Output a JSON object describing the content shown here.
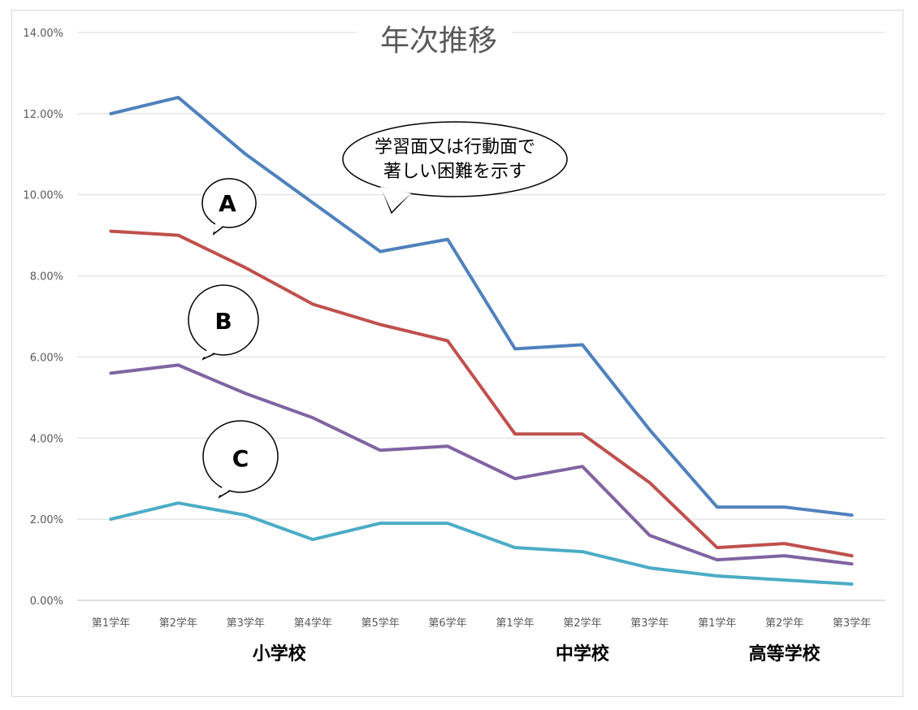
{
  "chart_data": {
    "type": "line",
    "title": "年次推移",
    "categories": [
      "第1学年",
      "第2学年",
      "第3学年",
      "第4学年",
      "第5学年",
      "第6学年",
      "第1学年",
      "第2学年",
      "第3学年",
      "第1学年",
      "第2学年",
      "第3学年"
    ],
    "groups": [
      {
        "label": "小学校",
        "from": 0,
        "to": 5
      },
      {
        "label": "中学校",
        "from": 6,
        "to": 8
      },
      {
        "label": "高等学校",
        "from": 9,
        "to": 11
      }
    ],
    "y_ticks": [
      "0.00%",
      "2.00%",
      "4.00%",
      "6.00%",
      "8.00%",
      "10.00%",
      "12.00%",
      "14.00%"
    ],
    "ylim": [
      0,
      14
    ],
    "y_unit": "%",
    "grid": true,
    "series": [
      {
        "color": "#4F81BD",
        "values": [
          12.0,
          12.4,
          11.0,
          9.8,
          8.6,
          8.9,
          6.2,
          6.3,
          4.2,
          2.3,
          2.3,
          2.1
        ]
      },
      {
        "color": "#C0504D",
        "values": [
          9.1,
          9.0,
          8.2,
          7.3,
          6.8,
          6.4,
          4.1,
          4.1,
          2.9,
          1.3,
          1.4,
          1.1
        ]
      },
      {
        "color": "#8064A2",
        "values": [
          5.6,
          5.8,
          5.1,
          4.5,
          3.7,
          3.8,
          3.0,
          3.3,
          1.6,
          1.0,
          1.1,
          0.9
        ]
      },
      {
        "color": "#4BACC6",
        "values": [
          2.0,
          2.4,
          2.1,
          1.5,
          1.9,
          1.9,
          1.3,
          1.2,
          0.8,
          0.6,
          0.5,
          0.4
        ]
      }
    ],
    "annotations": {
      "note_line1": "学習面又は行動面で",
      "note_line2": "著しい困難を示す",
      "label_a": "A",
      "label_b": "B",
      "label_c": "C"
    }
  }
}
